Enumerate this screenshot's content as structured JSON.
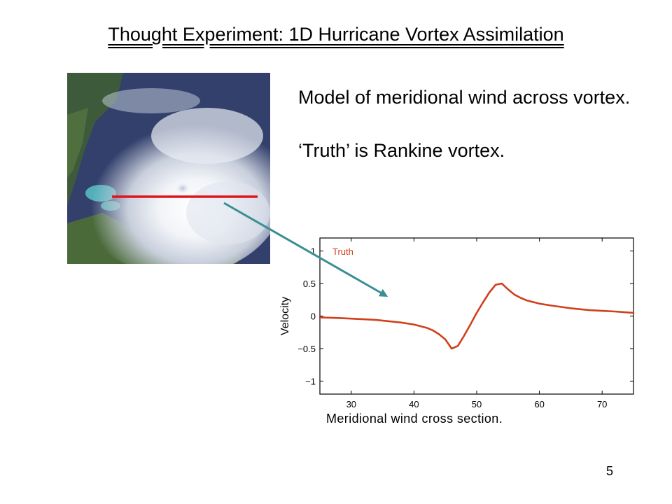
{
  "slide": {
    "title": "Thought Experiment: 1D Hurricane Vortex Assimilation",
    "bullets": [
      "Model of meridional wind across vortex.",
      "‘Truth’ is Rankine vortex."
    ],
    "caption": "Meridional wind cross section.",
    "page_number": "5"
  },
  "colors": {
    "truth_line": "#d0401c",
    "arrow": "#3a8f94",
    "cross_section_line": "#e0141a"
  },
  "chart_data": {
    "type": "line",
    "ylabel": "Velocity",
    "xlabel": "",
    "xlim": [
      25,
      75
    ],
    "ylim": [
      -1.2,
      1.2
    ],
    "xticks": [
      30,
      40,
      50,
      60,
      70
    ],
    "yticks": [
      1,
      0.5,
      0,
      -0.5,
      -1
    ],
    "ytick_labels": [
      "1",
      "0.5",
      "0",
      "−0.5",
      "−1"
    ],
    "legend_position": "top-left",
    "grid": false,
    "series": [
      {
        "name": "Truth",
        "x": [
          25,
          28,
          30,
          32,
          34,
          36,
          38,
          40,
          42,
          43,
          44,
          45,
          46,
          47,
          48,
          49,
          50,
          51,
          52,
          53,
          54,
          55,
          56,
          57,
          58,
          60,
          62,
          65,
          68,
          70,
          72,
          75
        ],
        "y": [
          -0.02,
          -0.03,
          -0.04,
          -0.05,
          -0.06,
          -0.08,
          -0.1,
          -0.13,
          -0.18,
          -0.22,
          -0.28,
          -0.36,
          -0.5,
          -0.46,
          -0.3,
          -0.13,
          0.05,
          0.21,
          0.36,
          0.48,
          0.5,
          0.41,
          0.33,
          0.28,
          0.24,
          0.19,
          0.16,
          0.12,
          0.09,
          0.08,
          0.07,
          0.05
        ]
      }
    ]
  }
}
